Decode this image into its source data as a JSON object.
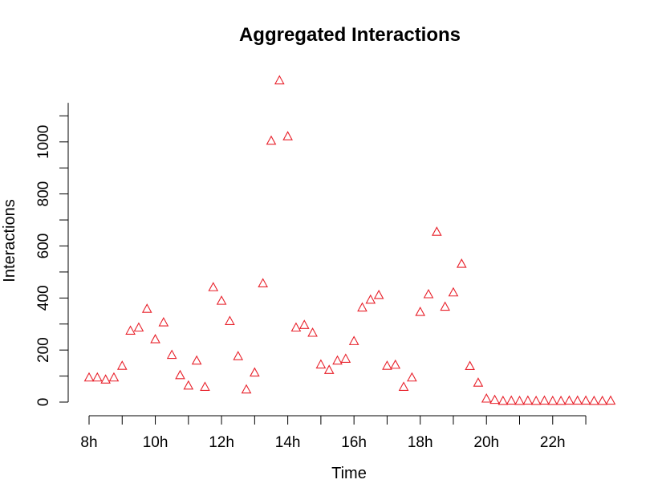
{
  "chart_data": {
    "type": "scatter",
    "title": "Aggregated Interactions",
    "xlabel": "Time",
    "ylabel": "Interactions",
    "marker": "open-triangle",
    "marker_color": "#e8202a",
    "x_unit": "hour of day",
    "x_ticks": [
      8,
      9,
      10,
      11,
      12,
      13,
      14,
      15,
      16,
      17,
      18,
      19,
      20,
      21,
      22,
      23
    ],
    "x_tick_labels": [
      {
        "x": 8,
        "label": "8h"
      },
      {
        "x": 10,
        "label": "10h"
      },
      {
        "x": 12,
        "label": "12h"
      },
      {
        "x": 14,
        "label": "14h"
      },
      {
        "x": 16,
        "label": "16h"
      },
      {
        "x": 18,
        "label": "18h"
      },
      {
        "x": 20,
        "label": "20h"
      },
      {
        "x": 22,
        "label": "22h"
      }
    ],
    "y_ticks": [
      0,
      200,
      400,
      600,
      800,
      1000
    ],
    "xlim": [
      8,
      23.75
    ],
    "ylim": [
      0,
      1240
    ],
    "grid": false,
    "points": [
      {
        "x": 8.0,
        "y": 93
      },
      {
        "x": 8.25,
        "y": 93
      },
      {
        "x": 8.5,
        "y": 85
      },
      {
        "x": 8.75,
        "y": 93
      },
      {
        "x": 9.0,
        "y": 138
      },
      {
        "x": 9.25,
        "y": 273
      },
      {
        "x": 9.5,
        "y": 285
      },
      {
        "x": 9.75,
        "y": 357
      },
      {
        "x": 10.0,
        "y": 240
      },
      {
        "x": 10.25,
        "y": 305
      },
      {
        "x": 10.5,
        "y": 180
      },
      {
        "x": 10.75,
        "y": 102
      },
      {
        "x": 11.0,
        "y": 62
      },
      {
        "x": 11.25,
        "y": 158
      },
      {
        "x": 11.5,
        "y": 57
      },
      {
        "x": 11.75,
        "y": 440
      },
      {
        "x": 12.0,
        "y": 388
      },
      {
        "x": 12.25,
        "y": 310
      },
      {
        "x": 12.5,
        "y": 175
      },
      {
        "x": 12.75,
        "y": 47
      },
      {
        "x": 13.0,
        "y": 112
      },
      {
        "x": 13.25,
        "y": 455
      },
      {
        "x": 13.5,
        "y": 1003
      },
      {
        "x": 13.75,
        "y": 1235
      },
      {
        "x": 14.0,
        "y": 1020
      },
      {
        "x": 14.25,
        "y": 285
      },
      {
        "x": 14.5,
        "y": 295
      },
      {
        "x": 14.75,
        "y": 265
      },
      {
        "x": 15.0,
        "y": 143
      },
      {
        "x": 15.25,
        "y": 122
      },
      {
        "x": 15.5,
        "y": 158
      },
      {
        "x": 15.75,
        "y": 165
      },
      {
        "x": 16.0,
        "y": 233
      },
      {
        "x": 16.25,
        "y": 362
      },
      {
        "x": 16.5,
        "y": 392
      },
      {
        "x": 16.75,
        "y": 410
      },
      {
        "x": 17.0,
        "y": 138
      },
      {
        "x": 17.25,
        "y": 142
      },
      {
        "x": 17.5,
        "y": 57
      },
      {
        "x": 17.75,
        "y": 93
      },
      {
        "x": 18.0,
        "y": 345
      },
      {
        "x": 18.25,
        "y": 413
      },
      {
        "x": 18.5,
        "y": 653
      },
      {
        "x": 18.75,
        "y": 365
      },
      {
        "x": 19.0,
        "y": 420
      },
      {
        "x": 19.25,
        "y": 530
      },
      {
        "x": 19.5,
        "y": 137
      },
      {
        "x": 19.75,
        "y": 73
      },
      {
        "x": 20.0,
        "y": 12
      },
      {
        "x": 20.25,
        "y": 7
      },
      {
        "x": 20.5,
        "y": 3
      },
      {
        "x": 20.75,
        "y": 4
      },
      {
        "x": 21.0,
        "y": 3
      },
      {
        "x": 21.25,
        "y": 4
      },
      {
        "x": 21.5,
        "y": 3
      },
      {
        "x": 21.75,
        "y": 4
      },
      {
        "x": 22.0,
        "y": 3
      },
      {
        "x": 22.25,
        "y": 3
      },
      {
        "x": 22.5,
        "y": 4
      },
      {
        "x": 22.75,
        "y": 4
      },
      {
        "x": 23.0,
        "y": 4
      },
      {
        "x": 23.25,
        "y": 3
      },
      {
        "x": 23.5,
        "y": 3
      },
      {
        "x": 23.75,
        "y": 4
      }
    ]
  }
}
